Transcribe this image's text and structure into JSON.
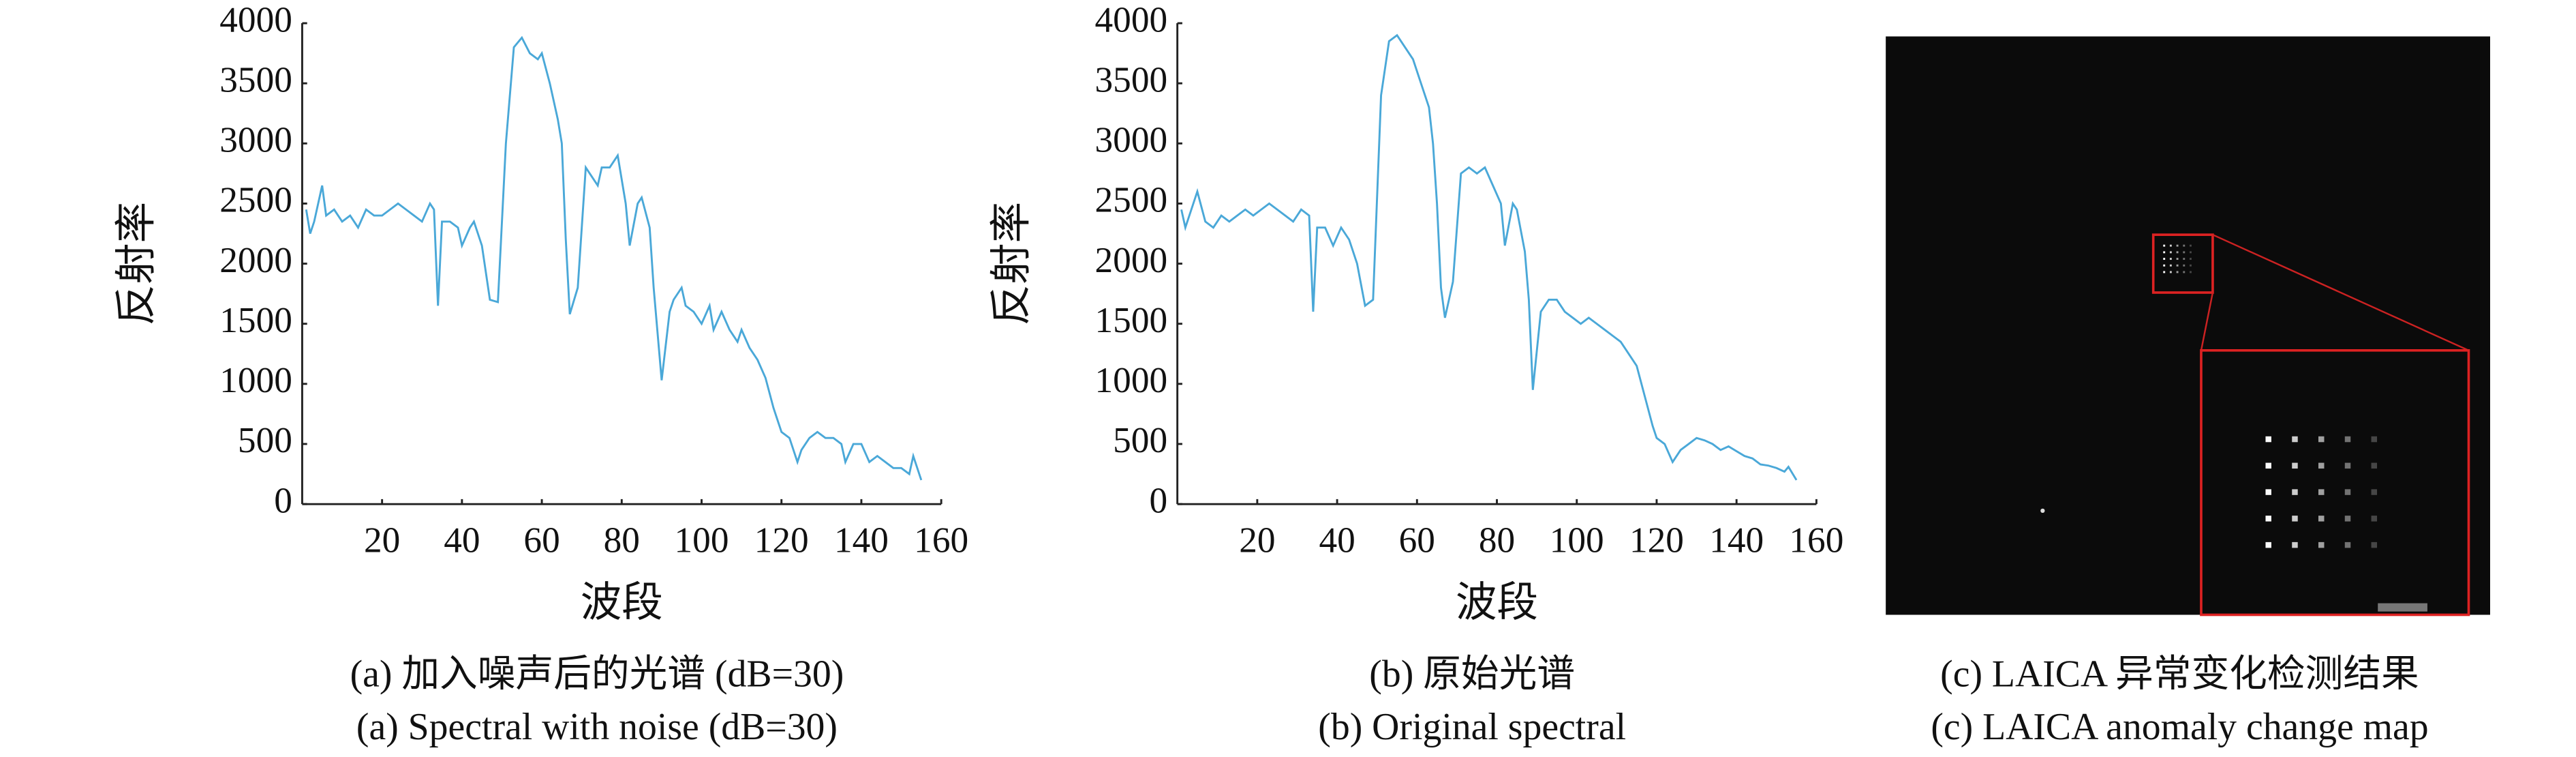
{
  "chart_data": [
    {
      "type": "line",
      "y_label": "反射率",
      "x_label": "波段",
      "caption": "(a) 加入噪声后的光谱 (dB=30)",
      "caption_en": "(a) Spectral with noise (dB=30)",
      "color": "#4aa8d8",
      "xlim": [
        0,
        160
      ],
      "ylim": [
        0,
        4000
      ],
      "xticks": [
        20,
        40,
        60,
        80,
        100,
        120,
        140,
        160
      ],
      "yticks": [
        0,
        500,
        1000,
        1500,
        2000,
        2500,
        3000,
        3500,
        4000
      ],
      "x": [
        1,
        2,
        3,
        5,
        6,
        8,
        10,
        12,
        14,
        16,
        18,
        20,
        22,
        24,
        26,
        28,
        30,
        32,
        33,
        34,
        35,
        37,
        39,
        40,
        42,
        43,
        45,
        47,
        49,
        51,
        53,
        55,
        57,
        59,
        60,
        62,
        64,
        65,
        66,
        67,
        69,
        71,
        72,
        74,
        75,
        77,
        79,
        81,
        82,
        84,
        85,
        87,
        88,
        90,
        92,
        93,
        95,
        96,
        98,
        100,
        102,
        103,
        105,
        107,
        109,
        110,
        112,
        114,
        116,
        118,
        119,
        120,
        122,
        124,
        125,
        127,
        129,
        131,
        133,
        135,
        136,
        138,
        140,
        142,
        144,
        146,
        148,
        150,
        152,
        153,
        155
      ],
      "values": [
        2450,
        2250,
        2350,
        2650,
        2400,
        2450,
        2350,
        2400,
        2300,
        2450,
        2400,
        2400,
        2450,
        2500,
        2450,
        2400,
        2350,
        2500,
        2450,
        1650,
        2350,
        2350,
        2300,
        2150,
        2300,
        2350,
        2150,
        1700,
        1680,
        3000,
        3800,
        3880,
        3750,
        3700,
        3750,
        3500,
        3200,
        3000,
        2200,
        1580,
        1800,
        2800,
        2750,
        2650,
        2800,
        2800,
        2900,
        2500,
        2150,
        2500,
        2550,
        2300,
        1800,
        1030,
        1600,
        1700,
        1800,
        1650,
        1600,
        1500,
        1650,
        1450,
        1600,
        1450,
        1350,
        1450,
        1300,
        1200,
        1050,
        800,
        700,
        600,
        550,
        350,
        450,
        550,
        600,
        550,
        550,
        500,
        350,
        500,
        500,
        350,
        400,
        350,
        300,
        300,
        250,
        400,
        200
      ]
    },
    {
      "type": "line",
      "y_label": "反射率",
      "x_label": "波段",
      "caption": "(b) 原始光谱",
      "caption_en": "(b) Original spectral",
      "color": "#4aa8d8",
      "xlim": [
        0,
        160
      ],
      "ylim": [
        0,
        4000
      ],
      "xticks": [
        20,
        40,
        60,
        80,
        100,
        120,
        140,
        160
      ],
      "yticks": [
        0,
        500,
        1000,
        1500,
        2000,
        2500,
        3000,
        3500,
        4000
      ],
      "x": [
        1,
        2,
        4,
        5,
        7,
        9,
        11,
        13,
        15,
        17,
        19,
        21,
        23,
        25,
        27,
        29,
        31,
        33,
        34,
        35,
        37,
        39,
        41,
        43,
        45,
        47,
        49,
        51,
        53,
        55,
        57,
        59,
        61,
        63,
        64,
        65,
        66,
        67,
        69,
        71,
        73,
        75,
        77,
        79,
        81,
        82,
        84,
        85,
        87,
        88,
        89,
        91,
        93,
        95,
        97,
        99,
        101,
        103,
        105,
        107,
        109,
        111,
        113,
        115,
        117,
        119,
        120,
        122,
        124,
        126,
        128,
        130,
        132,
        134,
        136,
        138,
        140,
        142,
        144,
        146,
        148,
        150,
        152,
        153,
        155
      ],
      "values": [
        2450,
        2300,
        2500,
        2600,
        2350,
        2300,
        2400,
        2350,
        2400,
        2450,
        2400,
        2450,
        2500,
        2450,
        2400,
        2350,
        2450,
        2400,
        1600,
        2300,
        2300,
        2150,
        2300,
        2200,
        2000,
        1650,
        1700,
        3400,
        3850,
        3900,
        3800,
        3700,
        3500,
        3300,
        3000,
        2500,
        1800,
        1550,
        1850,
        2750,
        2800,
        2750,
        2800,
        2650,
        2500,
        2150,
        2500,
        2450,
        2100,
        1700,
        950,
        1600,
        1700,
        1700,
        1600,
        1550,
        1500,
        1550,
        1500,
        1450,
        1400,
        1350,
        1250,
        1150,
        900,
        650,
        550,
        500,
        350,
        450,
        500,
        550,
        530,
        500,
        450,
        480,
        440,
        400,
        380,
        330,
        320,
        300,
        270,
        310,
        200
      ]
    }
  ],
  "image_panel": {
    "caption": "(c) LAICA 异常变化检测结果",
    "caption_en": "(c) LAICA anomaly change map"
  }
}
